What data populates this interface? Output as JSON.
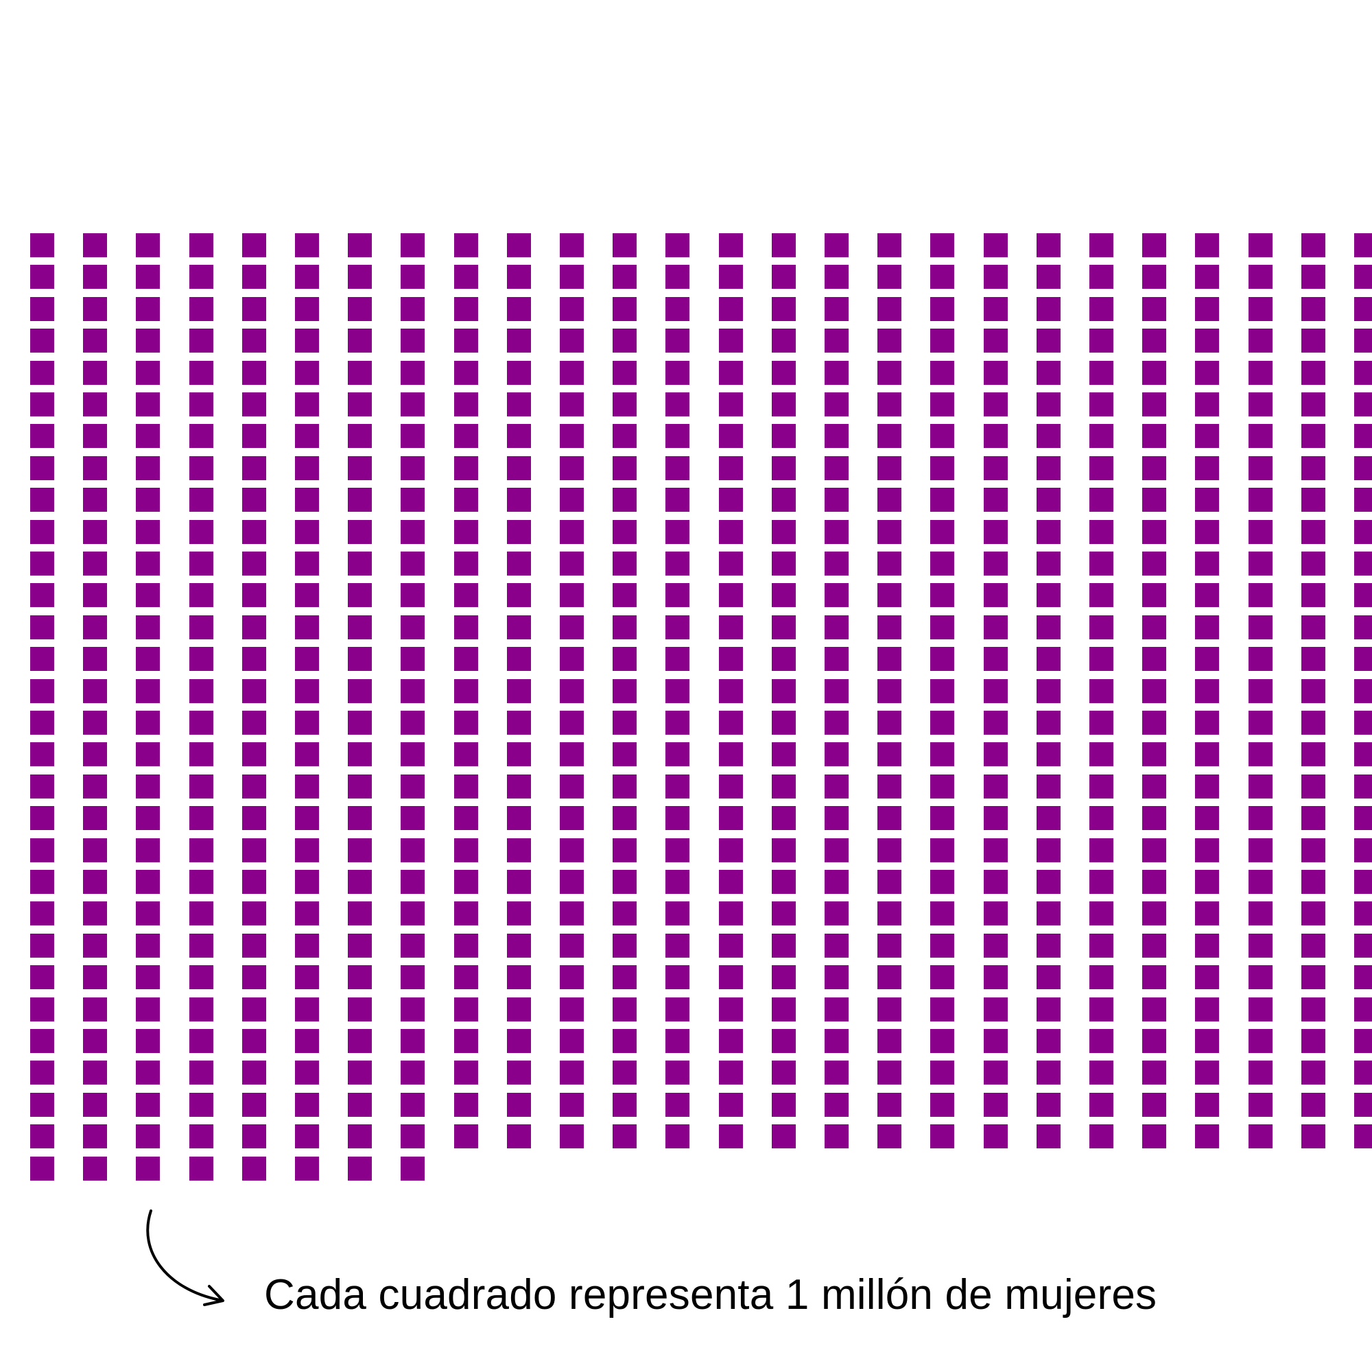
{
  "chart_data": {
    "type": "waffle",
    "unit_value": 1,
    "unit_label": "1 millón de mujeres",
    "columns": [
      30,
      30,
      30,
      30,
      30,
      30,
      30,
      30,
      29,
      29,
      29,
      29,
      29,
      29,
      29,
      29,
      29,
      29,
      29,
      29,
      29,
      29,
      29,
      29,
      29,
      29
    ],
    "total": 762,
    "color": "#8b008b"
  },
  "legend": {
    "text": "Cada cuadrado representa 1 millón de mujeres"
  }
}
